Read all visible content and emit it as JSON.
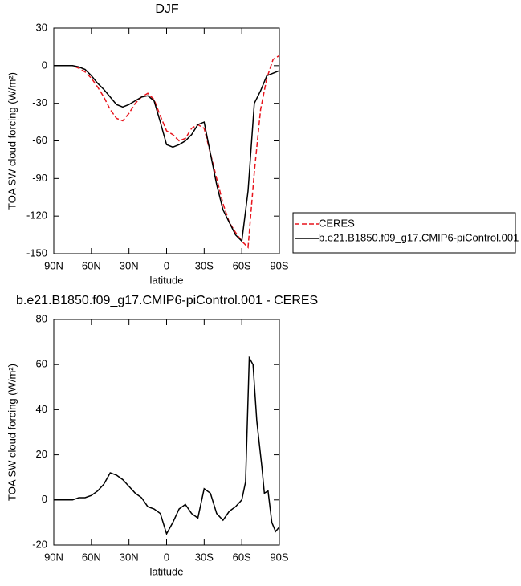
{
  "chart_data": [
    {
      "type": "line",
      "title": "DJF",
      "xlabel": "latitude",
      "ylabel": "TOA SW cloud forcing (W/m²)",
      "x": [
        90,
        85,
        80,
        75,
        70,
        65,
        60,
        55,
        50,
        45,
        40,
        35,
        30,
        25,
        20,
        15,
        10,
        5,
        0,
        -5,
        -10,
        -15,
        -20,
        -25,
        -30,
        -35,
        -40,
        -45,
        -50,
        -55,
        -60,
        -65,
        -70,
        -75,
        -80,
        -85,
        -90
      ],
      "series": [
        {
          "name": "CERES",
          "color": "#e8141c",
          "style": "dashed",
          "values": [
            0,
            0,
            0,
            0,
            -2,
            -5,
            -10,
            -17,
            -25,
            -35,
            -42,
            -44,
            -38,
            -30,
            -25,
            -22,
            -27,
            -40,
            -52,
            -55,
            -60,
            -58,
            -50,
            -47,
            -50,
            -70,
            -90,
            -110,
            -125,
            -133,
            -140,
            -145,
            -85,
            -35,
            -10,
            5,
            8
          ]
        },
        {
          "name": "b.e21.B1850.f09_g17.CMIP6-piControl.001",
          "color": "#000000",
          "style": "solid",
          "values": [
            0,
            0,
            0,
            0,
            -1,
            -3,
            -8,
            -14,
            -19,
            -25,
            -31,
            -33,
            -31,
            -28,
            -25,
            -24,
            -28,
            -45,
            -63,
            -65,
            -63,
            -60,
            -55,
            -47,
            -45,
            -70,
            -95,
            -115,
            -125,
            -135,
            -140,
            -100,
            -30,
            -20,
            -8,
            -6,
            -4
          ]
        }
      ],
      "xlim": [
        90,
        -90
      ],
      "xticks": [
        {
          "value": 90,
          "label": "90N"
        },
        {
          "value": 60,
          "label": "60N"
        },
        {
          "value": 30,
          "label": "30N"
        },
        0,
        {
          "value": -30,
          "label": "30S"
        },
        {
          "value": -60,
          "label": "60S"
        },
        {
          "value": -90,
          "label": "90S"
        }
      ],
      "ylim": [
        -150,
        30
      ],
      "yticks": [
        -150,
        -120,
        -90,
        -60,
        -30,
        0,
        30
      ],
      "legend": "right"
    },
    {
      "type": "line",
      "title": "b.e21.B1850.f09_g17.CMIP6-piControl.001 - CERES",
      "xlabel": "latitude",
      "ylabel": "TOA SW cloud forcing (W/m²)",
      "x": [
        90,
        85,
        80,
        75,
        70,
        65,
        60,
        55,
        50,
        45,
        40,
        35,
        30,
        25,
        20,
        15,
        10,
        5,
        0,
        -5,
        -10,
        -15,
        -20,
        -25,
        -30,
        -35,
        -40,
        -45,
        -50,
        -55,
        -60,
        -63,
        -66,
        -69,
        -72,
        -76,
        -78,
        -81,
        -84,
        -87,
        -90
      ],
      "series": [
        {
          "color": "#000000",
          "style": "solid",
          "values": [
            0,
            0,
            0,
            0,
            1,
            1,
            2,
            4,
            7,
            12,
            11,
            9,
            6,
            3,
            1,
            -3,
            -4,
            -6,
            -15,
            -10,
            -4,
            -2,
            -6,
            -8,
            5,
            3,
            -6,
            -9,
            -5,
            -3,
            0,
            8,
            63,
            60,
            35,
            15,
            3,
            4,
            -10,
            -14,
            -12
          ]
        }
      ],
      "xlim": [
        90,
        -90
      ],
      "xticks": [
        {
          "value": 90,
          "label": "90N"
        },
        {
          "value": 60,
          "label": "60N"
        },
        {
          "value": 30,
          "label": "30N"
        },
        0,
        {
          "value": -30,
          "label": "30S"
        },
        {
          "value": -60,
          "label": "60S"
        },
        {
          "value": -90,
          "label": "90S"
        }
      ],
      "ylim": [
        -20,
        80
      ],
      "yticks": [
        -20,
        0,
        20,
        40,
        60,
        80
      ]
    }
  ]
}
